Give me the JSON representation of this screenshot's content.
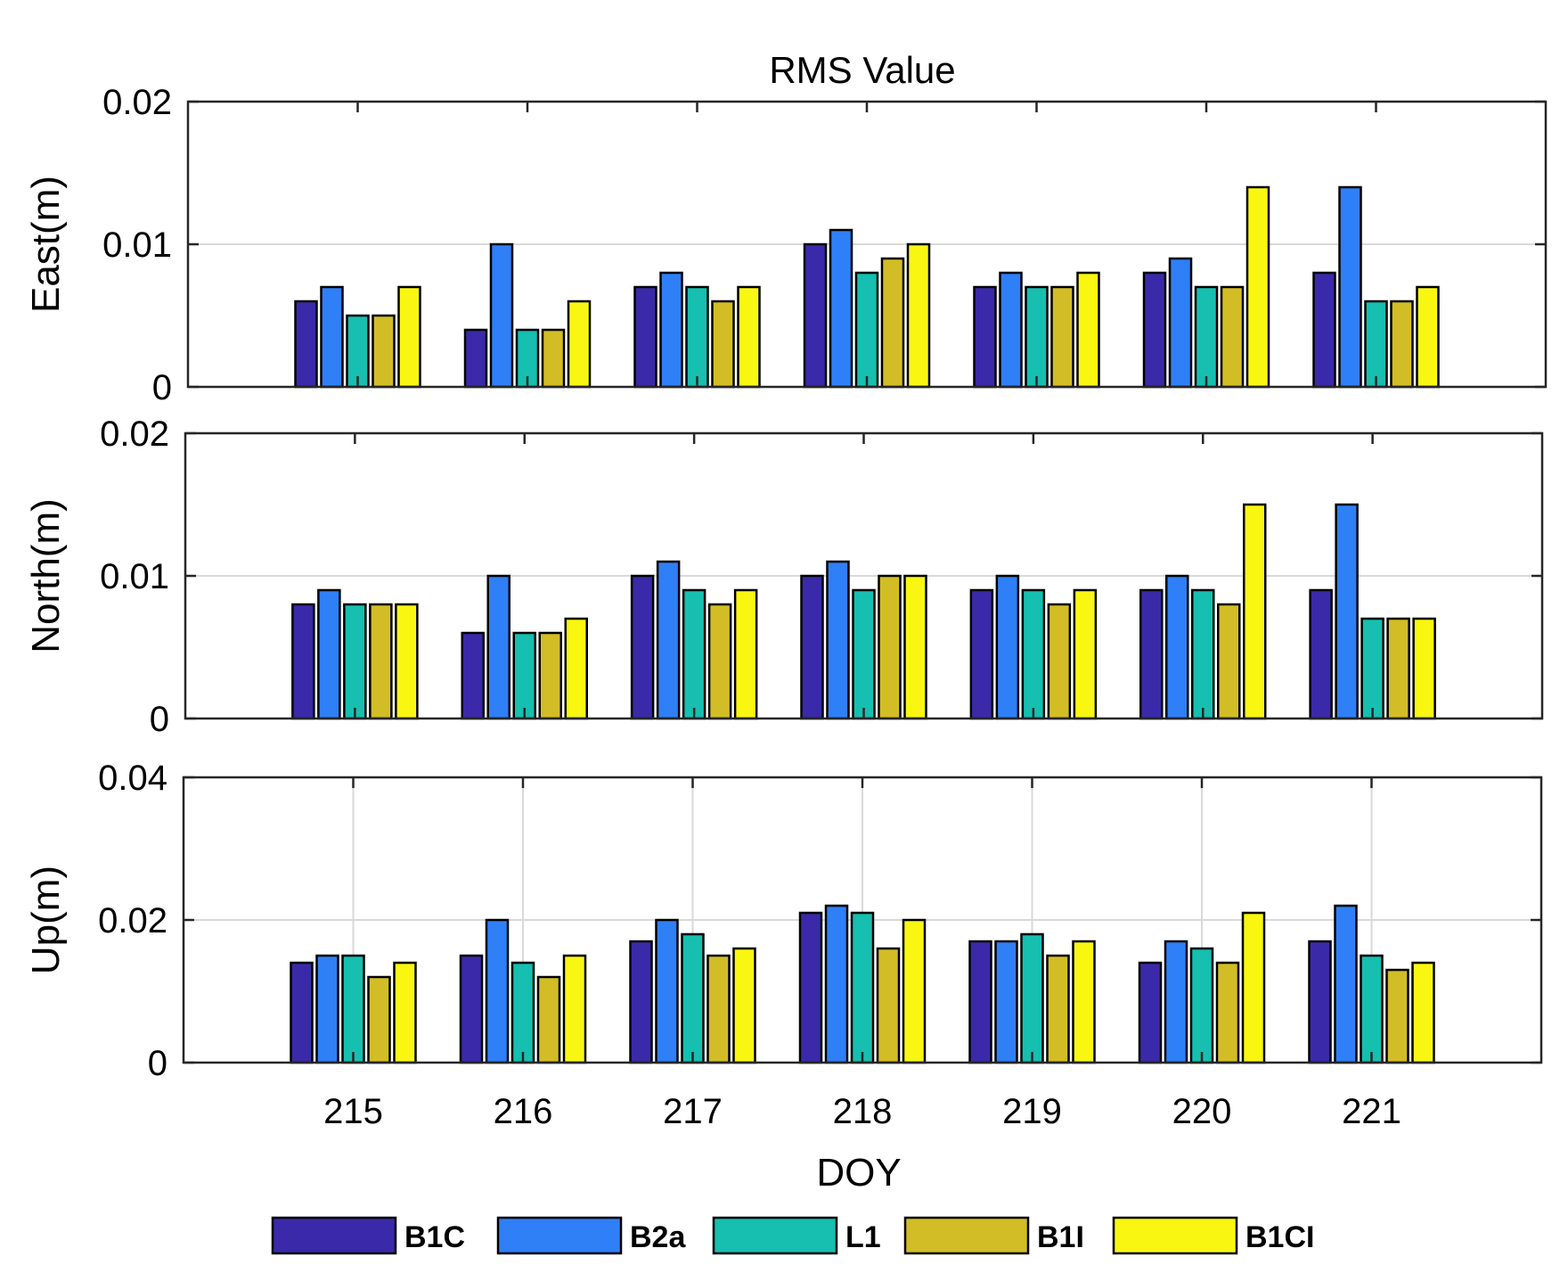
{
  "title": "RMS Value",
  "xlabel": "DOY",
  "colors": {
    "B1C": "#3a2aa9",
    "B2a": "#2f7ff7",
    "L1": "#16bfb0",
    "B1I": "#d3bd26",
    "B1CI": "#f9f711",
    "axis": "#262626",
    "grid": "#d9d9d9"
  },
  "chart_data": [
    {
      "type": "bar",
      "title": "RMS Value",
      "ylabel": "East(m)",
      "xlabel": "",
      "ylim": [
        0,
        0.02
      ],
      "yticks": [
        "0",
        "0.01",
        "0.02"
      ],
      "ytick_values": [
        0,
        0.01,
        0.02
      ],
      "categories": [
        "215",
        "216",
        "217",
        "218",
        "219",
        "220",
        "221"
      ],
      "show_xticklabels": false,
      "vertical_grid": false,
      "series": [
        {
          "name": "B1C",
          "values": [
            0.006,
            0.004,
            0.007,
            0.01,
            0.007,
            0.008,
            0.008
          ]
        },
        {
          "name": "B2a",
          "values": [
            0.007,
            0.01,
            0.008,
            0.011,
            0.008,
            0.009,
            0.014
          ]
        },
        {
          "name": "L1",
          "values": [
            0.005,
            0.004,
            0.007,
            0.008,
            0.007,
            0.007,
            0.006
          ]
        },
        {
          "name": "B1I",
          "values": [
            0.005,
            0.004,
            0.006,
            0.009,
            0.007,
            0.007,
            0.006
          ]
        },
        {
          "name": "B1CI",
          "values": [
            0.007,
            0.006,
            0.007,
            0.01,
            0.008,
            0.014,
            0.007
          ]
        }
      ]
    },
    {
      "type": "bar",
      "title": "",
      "ylabel": "North(m)",
      "xlabel": "",
      "ylim": [
        0,
        0.02
      ],
      "yticks": [
        "0",
        "0.01",
        "0.02"
      ],
      "ytick_values": [
        0,
        0.01,
        0.02
      ],
      "categories": [
        "215",
        "216",
        "217",
        "218",
        "219",
        "220",
        "221"
      ],
      "show_xticklabels": false,
      "vertical_grid": false,
      "series": [
        {
          "name": "B1C",
          "values": [
            0.008,
            0.006,
            0.01,
            0.01,
            0.009,
            0.009,
            0.009
          ]
        },
        {
          "name": "B2a",
          "values": [
            0.009,
            0.01,
            0.011,
            0.011,
            0.01,
            0.01,
            0.015
          ]
        },
        {
          "name": "L1",
          "values": [
            0.008,
            0.006,
            0.009,
            0.009,
            0.009,
            0.009,
            0.007
          ]
        },
        {
          "name": "B1I",
          "values": [
            0.008,
            0.006,
            0.008,
            0.01,
            0.008,
            0.008,
            0.007
          ]
        },
        {
          "name": "B1CI",
          "values": [
            0.008,
            0.007,
            0.009,
            0.01,
            0.009,
            0.015,
            0.007
          ]
        }
      ]
    },
    {
      "type": "bar",
      "title": "",
      "ylabel": "Up(m)",
      "xlabel": "DOY",
      "ylim": [
        0,
        0.04
      ],
      "yticks": [
        "0",
        "0.02",
        "0.04"
      ],
      "ytick_values": [
        0,
        0.02,
        0.04
      ],
      "categories": [
        "215",
        "216",
        "217",
        "218",
        "219",
        "220",
        "221"
      ],
      "show_xticklabels": true,
      "vertical_grid": true,
      "series": [
        {
          "name": "B1C",
          "values": [
            0.014,
            0.015,
            0.017,
            0.021,
            0.017,
            0.014,
            0.017
          ]
        },
        {
          "name": "B2a",
          "values": [
            0.015,
            0.02,
            0.02,
            0.022,
            0.017,
            0.017,
            0.022
          ]
        },
        {
          "name": "L1",
          "values": [
            0.015,
            0.014,
            0.018,
            0.021,
            0.018,
            0.016,
            0.015
          ]
        },
        {
          "name": "B1I",
          "values": [
            0.012,
            0.012,
            0.015,
            0.016,
            0.015,
            0.014,
            0.013
          ]
        },
        {
          "name": "B1CI",
          "values": [
            0.014,
            0.015,
            0.016,
            0.02,
            0.017,
            0.021,
            0.014
          ]
        }
      ]
    }
  ],
  "legend": {
    "placement": "bottom",
    "items": [
      "B1C",
      "B2a",
      "L1",
      "B1I",
      "B1CI"
    ]
  }
}
